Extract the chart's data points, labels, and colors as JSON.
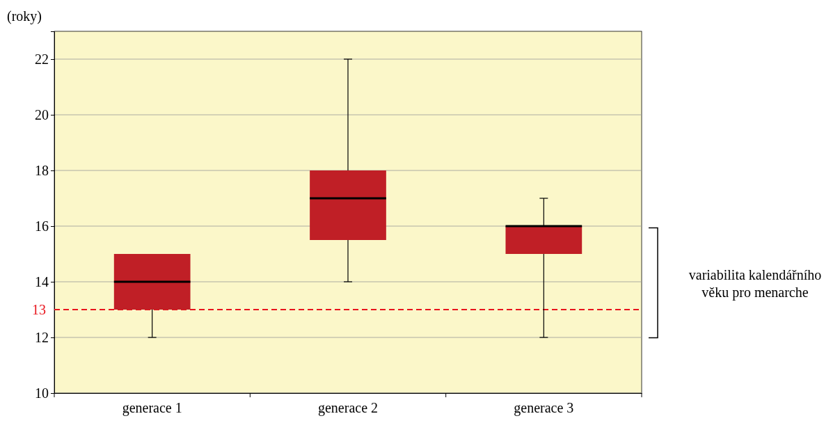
{
  "chart_data": {
    "type": "box",
    "ylabel": "(roky)",
    "categories": [
      "generace 1",
      "generace 2",
      "generace 3"
    ],
    "boxes": [
      {
        "low": 12,
        "q1": 13,
        "median": 14,
        "q3": 15,
        "high": 15
      },
      {
        "low": 14,
        "q1": 15.5,
        "median": 17,
        "q3": 18,
        "high": 22
      },
      {
        "low": 12,
        "q1": 15,
        "median": 16,
        "q3": 16,
        "high": 17
      }
    ],
    "color": "#c01f26",
    "ylim": [
      10,
      23
    ],
    "yticks": [
      10,
      12,
      14,
      16,
      18,
      20,
      22
    ],
    "grid": "y",
    "ref_lines": [
      {
        "axis": "y",
        "value": 13,
        "label": "13",
        "color": "#e8141c",
        "line_style": "dashed"
      }
    ],
    "annotations": [
      "variabilita kalendářního věku pro menarche"
    ]
  }
}
